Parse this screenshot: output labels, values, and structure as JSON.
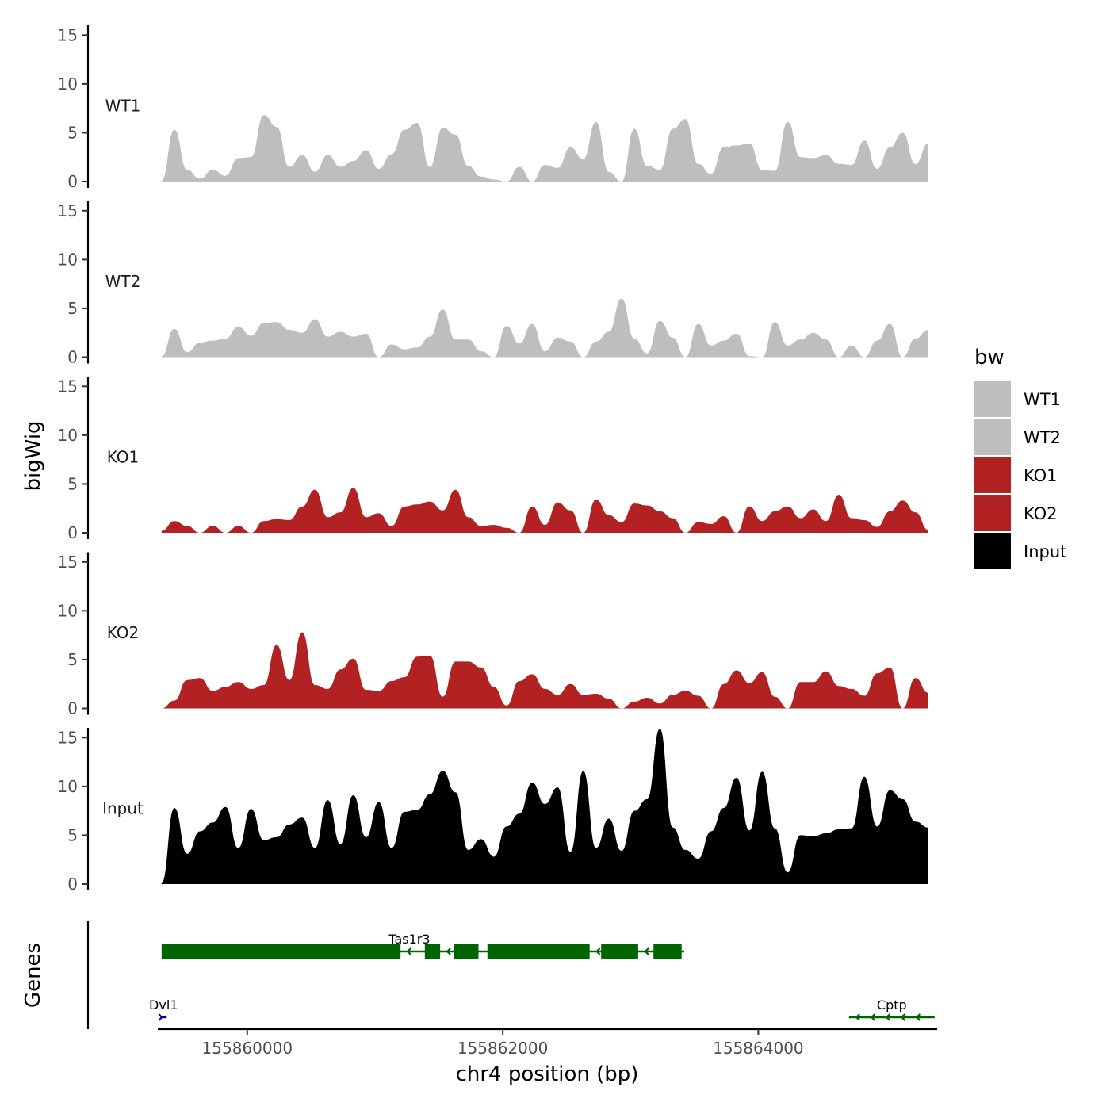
{
  "chart_data": {
    "type": "area",
    "ylabel": "bigWig",
    "xlabel": "chr4 position (bp)",
    "ylim": [
      0,
      16
    ],
    "y_ticks": [
      "0",
      "5",
      "10",
      "15"
    ],
    "x_range": [
      155859300,
      155865400
    ],
    "x_ticks": [
      {
        "value": 155860000,
        "label": "155860000"
      },
      {
        "value": 155862000,
        "label": "155862000"
      },
      {
        "value": 155864000,
        "label": "155864000"
      }
    ],
    "gene_panel_label": "Genes",
    "legend": {
      "title": "bw",
      "entries": [
        {
          "label": "WT1",
          "color": "#bebebe"
        },
        {
          "label": "WT2",
          "color": "#bebebe"
        },
        {
          "label": "KO1",
          "color": "#b22222"
        },
        {
          "label": "KO2",
          "color": "#b22222"
        },
        {
          "label": "Input",
          "color": "#000000"
        }
      ]
    },
    "x": [
      155859330,
      155859430,
      155859530,
      155859630,
      155859730,
      155859830,
      155859930,
      155860030,
      155860130,
      155860230,
      155860330,
      155860430,
      155860530,
      155860630,
      155860730,
      155860830,
      155860930,
      155861030,
      155861130,
      155861230,
      155861330,
      155861430,
      155861530,
      155861630,
      155861730,
      155861830,
      155861930,
      155862030,
      155862130,
      155862230,
      155862330,
      155862430,
      155862530,
      155862630,
      155862730,
      155862830,
      155862930,
      155863030,
      155863130,
      155863230,
      155863330,
      155863430,
      155863530,
      155863630,
      155863730,
      155863830,
      155863930,
      155864030,
      155864130,
      155864230,
      155864330,
      155864430,
      155864530,
      155864630,
      155864730,
      155864830,
      155864930,
      155865030,
      155865130,
      155865230,
      155865330
    ],
    "series": [
      {
        "name": "WT1",
        "color": "#bebebe",
        "values": [
          0.1,
          5.3,
          1.2,
          0.3,
          1.2,
          0.6,
          2.4,
          2.5,
          6.8,
          5.6,
          1.5,
          2.7,
          1.0,
          2.7,
          1.5,
          2.1,
          3.2,
          1.3,
          2.8,
          5.3,
          6.0,
          1.5,
          5.5,
          4.8,
          1.6,
          0.5,
          0.2,
          0.0,
          1.5,
          0.0,
          1.7,
          1.4,
          3.5,
          2.3,
          6.1,
          1.0,
          0.0,
          5.4,
          1.6,
          1.2,
          5.4,
          6.4,
          1.8,
          0.8,
          3.5,
          3.7,
          3.9,
          1.2,
          1.1,
          6.1,
          2.5,
          2.4,
          2.7,
          1.8,
          1.7,
          4.2,
          1.3,
          3.5,
          5.0,
          1.8,
          3.9
        ]
      },
      {
        "name": "WT2",
        "color": "#bebebe",
        "values": [
          0.1,
          2.9,
          0.5,
          1.5,
          1.7,
          1.9,
          3.1,
          2.2,
          3.5,
          3.6,
          2.8,
          2.5,
          3.9,
          2.1,
          2.6,
          2.1,
          2.4,
          0.0,
          1.3,
          0.8,
          1.0,
          2.1,
          4.9,
          1.8,
          1.8,
          0.6,
          0.0,
          3.2,
          1.4,
          3.4,
          0.6,
          2.0,
          1.6,
          0.0,
          1.6,
          2.6,
          6.0,
          1.9,
          0.4,
          3.7,
          2.0,
          0.0,
          3.4,
          1.2,
          1.7,
          2.4,
          0.1,
          0.0,
          3.6,
          1.2,
          1.8,
          2.5,
          1.8,
          0.0,
          1.2,
          0.0,
          1.7,
          3.4,
          0.0,
          1.9,
          2.8
        ]
      },
      {
        "name": "KO1",
        "color": "#b22222",
        "values": [
          0.2,
          1.2,
          0.7,
          0.0,
          0.7,
          0.0,
          0.7,
          0.0,
          1.2,
          1.4,
          1.3,
          2.7,
          4.4,
          1.6,
          2.1,
          4.6,
          1.6,
          2.0,
          0.7,
          2.7,
          2.9,
          3.2,
          2.3,
          4.4,
          1.6,
          0.7,
          0.8,
          0.5,
          0.0,
          2.7,
          0.8,
          3.1,
          2.3,
          0.0,
          3.4,
          1.8,
          1.1,
          3.0,
          2.8,
          2.2,
          1.5,
          0.0,
          1.1,
          0.9,
          1.7,
          0.0,
          2.7,
          1.2,
          2.2,
          2.7,
          1.5,
          2.4,
          1.2,
          3.9,
          1.5,
          1.3,
          0.6,
          2.2,
          3.3,
          2.1,
          0.3
        ]
      },
      {
        "name": "KO2",
        "color": "#b22222",
        "values": [
          0.0,
          0.8,
          2.9,
          3.1,
          1.8,
          2.2,
          2.7,
          2.0,
          2.4,
          6.5,
          2.9,
          7.8,
          2.4,
          2.0,
          4.0,
          5.1,
          1.9,
          1.8,
          2.8,
          3.2,
          5.3,
          5.4,
          1.2,
          4.8,
          4.8,
          4.2,
          2.2,
          0.3,
          2.8,
          3.5,
          2.0,
          1.4,
          2.5,
          1.4,
          1.5,
          1.0,
          0.0,
          0.7,
          1.1,
          0.5,
          1.4,
          1.8,
          1.3,
          0.0,
          2.5,
          3.9,
          2.6,
          3.7,
          1.2,
          0.0,
          2.7,
          2.7,
          3.8,
          2.3,
          2.0,
          1.3,
          3.6,
          4.2,
          0.0,
          3.1,
          1.6
        ]
      },
      {
        "name": "Input",
        "color": "#000000",
        "values": [
          0.1,
          7.8,
          3.1,
          5.4,
          6.3,
          7.9,
          3.7,
          7.7,
          4.5,
          4.8,
          6.1,
          6.8,
          3.7,
          8.6,
          4.1,
          9.1,
          4.8,
          8.4,
          3.7,
          7.4,
          7.6,
          9.2,
          11.6,
          9.4,
          3.5,
          4.6,
          2.8,
          5.9,
          7.2,
          10.4,
          8.2,
          9.9,
          3.3,
          11.6,
          3.7,
          6.7,
          3.4,
          7.5,
          8.7,
          15.9,
          5.8,
          3.5,
          2.6,
          5.4,
          7.8,
          10.9,
          5.5,
          11.5,
          5.7,
          1.2,
          5.0,
          4.9,
          5.2,
          5.6,
          5.7,
          11.0,
          5.9,
          9.6,
          8.7,
          6.4,
          5.8
        ]
      }
    ],
    "genes": [
      {
        "name": "Tas1r3",
        "strand": "-",
        "color": "#006400",
        "start": 155859330,
        "end": 155863420,
        "exons": [
          [
            155859330,
            155861200
          ],
          [
            155861390,
            155861510
          ],
          [
            155861620,
            155861810
          ],
          [
            155861880,
            155862680
          ],
          [
            155862770,
            155863060
          ],
          [
            155863180,
            155863400
          ]
        ]
      },
      {
        "name": "Dvl1",
        "strand": "+",
        "color": "#00008b",
        "start": 155859320,
        "end": 155859370,
        "exons": []
      },
      {
        "name": "Cptp",
        "strand": "-",
        "color": "#006400",
        "start": 155864710,
        "end": 155865380,
        "exons": []
      }
    ]
  }
}
